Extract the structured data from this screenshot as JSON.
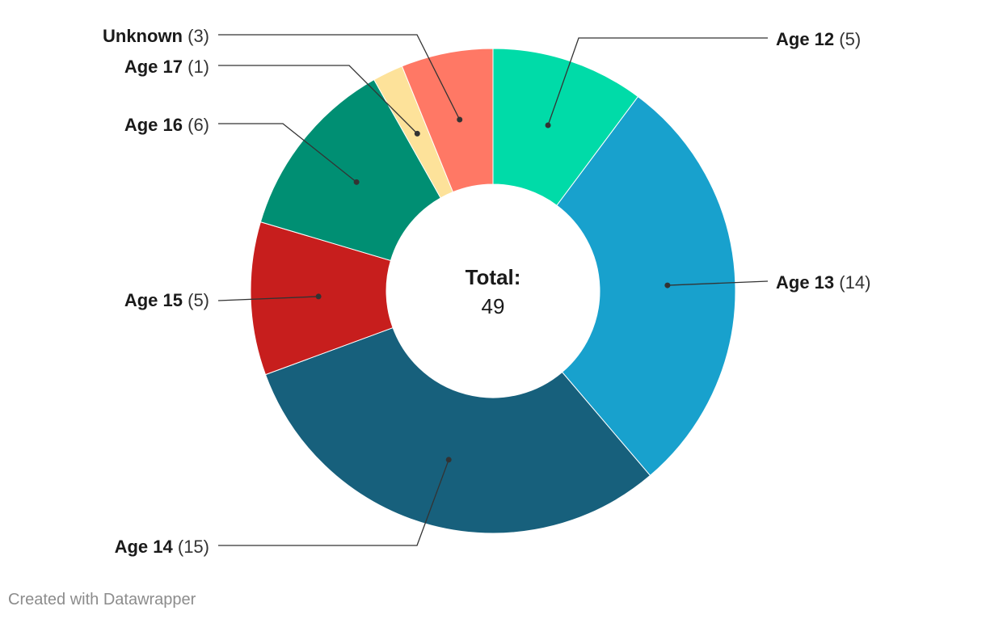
{
  "chart_data": {
    "type": "pie",
    "donut": true,
    "center_label": {
      "title": "Total:",
      "value": "49"
    },
    "slices": [
      {
        "label": "Age 12",
        "value": 5,
        "value_text": "(5)",
        "color": "#00dba8"
      },
      {
        "label": "Age 13",
        "value": 14,
        "value_text": "(14)",
        "color": "#18a1cd"
      },
      {
        "label": "Age 14",
        "value": 15,
        "value_text": "(15)",
        "color": "#17607c"
      },
      {
        "label": "Age 15",
        "value": 5,
        "value_text": "(5)",
        "color": "#c71e1d"
      },
      {
        "label": "Age 16",
        "value": 6,
        "value_text": "(6)",
        "color": "#008f73"
      },
      {
        "label": "Age 17",
        "value": 1,
        "value_text": "(1)",
        "color": "#fde29a"
      },
      {
        "label": "Unknown",
        "value": 3,
        "value_text": "(3)",
        "color": "#ff7865"
      }
    ],
    "legend": "none"
  },
  "footer": {
    "credit": "Created with Datawrapper"
  }
}
